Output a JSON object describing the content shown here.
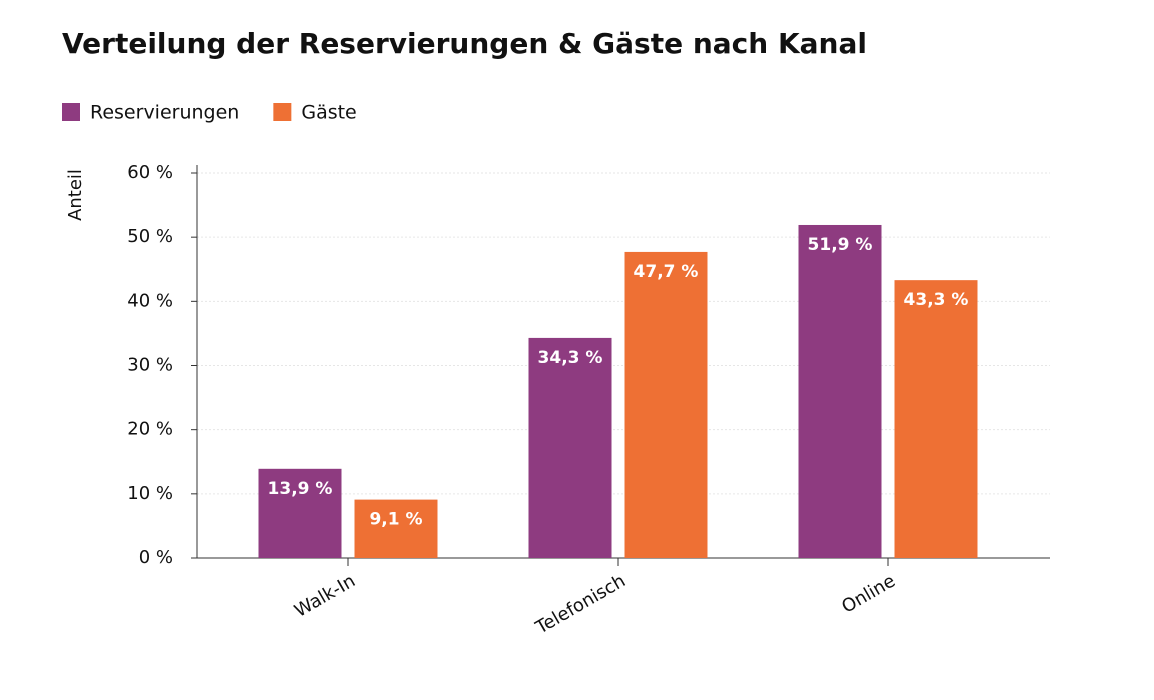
{
  "chart_data": {
    "type": "bar",
    "title": "Verteilung der Reservierungen & Gäste nach Kanal",
    "y_label": "Anteil",
    "categories": [
      "Walk-In",
      "Telefonisch",
      "Online"
    ],
    "series": [
      {
        "name": "Reservierungen",
        "color": "#8e3b80",
        "values": [
          13.9,
          34.3,
          51.9
        ],
        "value_labels": [
          "13,9 %",
          "34,3 %",
          "51,9 %"
        ]
      },
      {
        "name": "Gäste",
        "color": "#ee7034",
        "values": [
          9.1,
          47.7,
          43.3
        ],
        "value_labels": [
          "9,1 %",
          "47,7 %",
          "43,3 %"
        ]
      }
    ],
    "ylim": [
      0,
      60
    ],
    "yticks": [
      {
        "value": 0,
        "label": "0 %"
      },
      {
        "value": 10,
        "label": "10 %"
      },
      {
        "value": 20,
        "label": "20 %"
      },
      {
        "value": 30,
        "label": "30 %"
      },
      {
        "value": 40,
        "label": "40 %"
      },
      {
        "value": 50,
        "label": "50 %"
      },
      {
        "value": 60,
        "label": "60 %"
      }
    ],
    "grid": true
  }
}
